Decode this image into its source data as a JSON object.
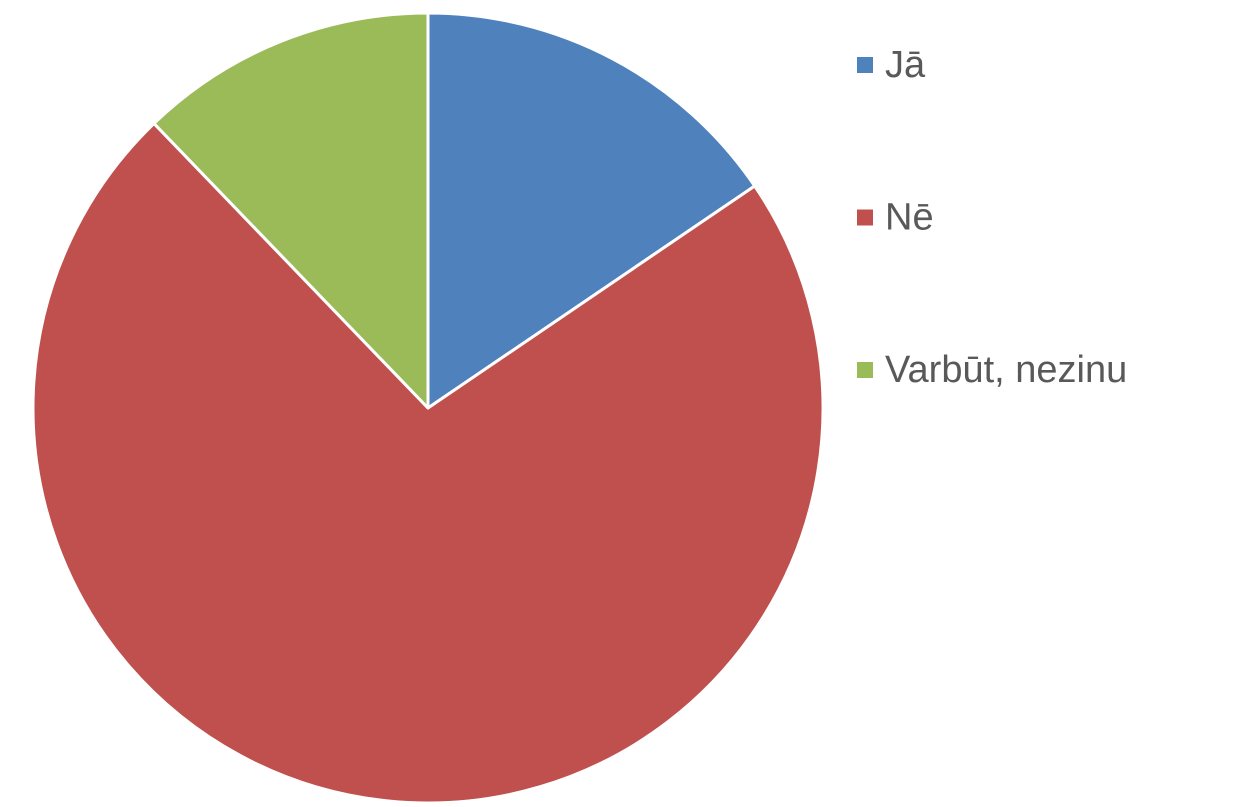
{
  "chart_data": {
    "type": "pie",
    "categories": [
      "Jā",
      "Nē",
      "Varbūt, nezinu"
    ],
    "values": [
      15.5,
      72.3,
      12.2
    ],
    "colors": [
      "#4f81bd",
      "#c0504d",
      "#9bbb59"
    ],
    "legend": "right"
  }
}
